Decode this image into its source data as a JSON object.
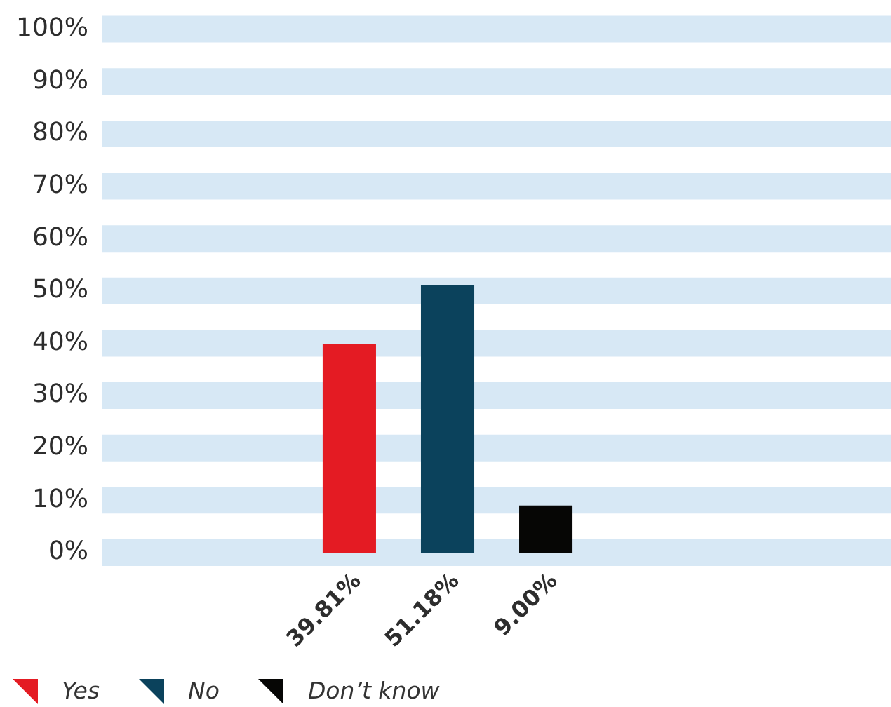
{
  "chart_data": {
    "type": "bar",
    "categories": [
      null
    ],
    "series": [
      {
        "name": "Yes",
        "color": "#e41b23",
        "values": [
          39.81
        ],
        "value_labels": [
          "39.81%"
        ]
      },
      {
        "name": "No",
        "color": "#0b425c",
        "values": [
          51.18
        ],
        "value_labels": [
          "51.18%"
        ]
      },
      {
        "name": "Don’t know",
        "color": "#060605",
        "values": [
          9.0
        ],
        "value_labels": [
          "9.00%"
        ]
      }
    ],
    "ylim": [
      0,
      100
    ],
    "yticks": [
      {
        "value": 0,
        "label": "0%"
      },
      {
        "value": 10,
        "label": "10%"
      },
      {
        "value": 20,
        "label": "20%"
      },
      {
        "value": 30,
        "label": "30%"
      },
      {
        "value": 40,
        "label": "40%"
      },
      {
        "value": 50,
        "label": "50%"
      },
      {
        "value": 60,
        "label": "60%"
      },
      {
        "value": 70,
        "label": "70%"
      },
      {
        "value": 80,
        "label": "80%"
      },
      {
        "value": 90,
        "label": "90%"
      },
      {
        "value": 100,
        "label": "100%"
      }
    ],
    "grid": "y",
    "legend": "bottom left"
  }
}
